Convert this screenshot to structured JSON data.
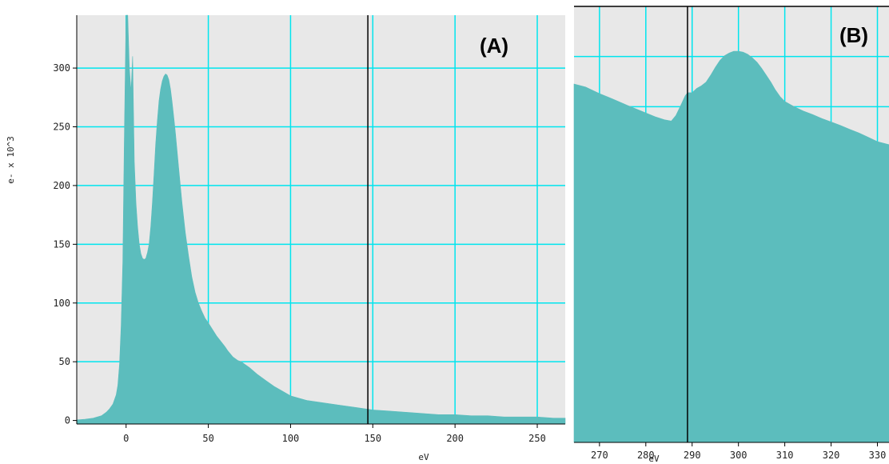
{
  "chart_data": [
    {
      "panel_label": "(A)",
      "type": "area",
      "xlabel": "eV",
      "ylabel": "e- x 10^3",
      "xlim": [
        -30,
        267
      ],
      "ylim": [
        -3,
        345
      ],
      "xticks": [
        0,
        50,
        100,
        150,
        200,
        250
      ],
      "yticks": [
        0,
        50,
        100,
        150,
        200,
        250,
        300
      ],
      "grid": true,
      "fill_color": "#5cbdbd",
      "grid_color": "#00e5ee",
      "background": "#e8e8e8",
      "marker_line_x": 147,
      "points": [
        [
          -30,
          0.5
        ],
        [
          -25,
          1
        ],
        [
          -20,
          2
        ],
        [
          -15,
          4
        ],
        [
          -12,
          7
        ],
        [
          -10,
          10
        ],
        [
          -8,
          14
        ],
        [
          -6,
          22
        ],
        [
          -5,
          30
        ],
        [
          -4,
          48
        ],
        [
          -3,
          80
        ],
        [
          -2,
          135
        ],
        [
          -1,
          250
        ],
        [
          0,
          345
        ],
        [
          1,
          345
        ],
        [
          2,
          300
        ],
        [
          3,
          280
        ],
        [
          4,
          310
        ],
        [
          5,
          220
        ],
        [
          6,
          185
        ],
        [
          7,
          165
        ],
        [
          8,
          150
        ],
        [
          9,
          142
        ],
        [
          10,
          138
        ],
        [
          11,
          137
        ],
        [
          12,
          138
        ],
        [
          13,
          143
        ],
        [
          14,
          150
        ],
        [
          15,
          165
        ],
        [
          16,
          185
        ],
        [
          17,
          210
        ],
        [
          18,
          235
        ],
        [
          19,
          255
        ],
        [
          20,
          272
        ],
        [
          21,
          282
        ],
        [
          22,
          289
        ],
        [
          23,
          293
        ],
        [
          24,
          295
        ],
        [
          25,
          294
        ],
        [
          26,
          290
        ],
        [
          27,
          282
        ],
        [
          28,
          271
        ],
        [
          29,
          258
        ],
        [
          30,
          245
        ],
        [
          32,
          215
        ],
        [
          34,
          185
        ],
        [
          36,
          160
        ],
        [
          38,
          140
        ],
        [
          40,
          122
        ],
        [
          42,
          109
        ],
        [
          44,
          100
        ],
        [
          46,
          93
        ],
        [
          48,
          87
        ],
        [
          50,
          83
        ],
        [
          55,
          72
        ],
        [
          60,
          63
        ],
        [
          62,
          59
        ],
        [
          65,
          54
        ],
        [
          68,
          51
        ],
        [
          70,
          50
        ],
        [
          72,
          48
        ],
        [
          75,
          45
        ],
        [
          80,
          39
        ],
        [
          85,
          34
        ],
        [
          90,
          29
        ],
        [
          95,
          25
        ],
        [
          100,
          21
        ],
        [
          110,
          17
        ],
        [
          120,
          15
        ],
        [
          130,
          13
        ],
        [
          140,
          11
        ],
        [
          150,
          9
        ],
        [
          160,
          8
        ],
        [
          170,
          7
        ],
        [
          180,
          6
        ],
        [
          190,
          5
        ],
        [
          200,
          5
        ],
        [
          210,
          4
        ],
        [
          220,
          4
        ],
        [
          230,
          3
        ],
        [
          240,
          3
        ],
        [
          250,
          3
        ],
        [
          260,
          2
        ],
        [
          267,
          2
        ]
      ]
    },
    {
      "panel_label": "(B)",
      "type": "area",
      "xlabel": "eV",
      "ylabel": "",
      "xlim": [
        264.5,
        332.5
      ],
      "ylim": [
        0,
        1
      ],
      "xticks": [
        270,
        280,
        290,
        300,
        310,
        320,
        330
      ],
      "grid": true,
      "fill_color": "#5cbdbd",
      "grid_color": "#00e5ee",
      "background": "#e8e8e8",
      "marker_line_x": 289,
      "points": [
        [
          264.5,
          0.822
        ],
        [
          267,
          0.815
        ],
        [
          270,
          0.8
        ],
        [
          273,
          0.787
        ],
        [
          276,
          0.773
        ],
        [
          279,
          0.76
        ],
        [
          282,
          0.747
        ],
        [
          284,
          0.74
        ],
        [
          285.5,
          0.737
        ],
        [
          286.5,
          0.75
        ],
        [
          287.5,
          0.772
        ],
        [
          288.5,
          0.795
        ],
        [
          289,
          0.802
        ],
        [
          290,
          0.802
        ],
        [
          291,
          0.812
        ],
        [
          292,
          0.818
        ],
        [
          293,
          0.826
        ],
        [
          294,
          0.842
        ],
        [
          295,
          0.86
        ],
        [
          296,
          0.876
        ],
        [
          297,
          0.887
        ],
        [
          298,
          0.893
        ],
        [
          299,
          0.897
        ],
        [
          300,
          0.897
        ],
        [
          301,
          0.895
        ],
        [
          302,
          0.89
        ],
        [
          303,
          0.882
        ],
        [
          304,
          0.872
        ],
        [
          305,
          0.858
        ],
        [
          306,
          0.842
        ],
        [
          307,
          0.826
        ],
        [
          308,
          0.808
        ],
        [
          309,
          0.793
        ],
        [
          310,
          0.782
        ],
        [
          312,
          0.77
        ],
        [
          314,
          0.76
        ],
        [
          316,
          0.752
        ],
        [
          318,
          0.743
        ],
        [
          320,
          0.735
        ],
        [
          322,
          0.727
        ],
        [
          324,
          0.718
        ],
        [
          326,
          0.71
        ],
        [
          328,
          0.7
        ],
        [
          330,
          0.69
        ],
        [
          332.5,
          0.683
        ]
      ]
    }
  ]
}
